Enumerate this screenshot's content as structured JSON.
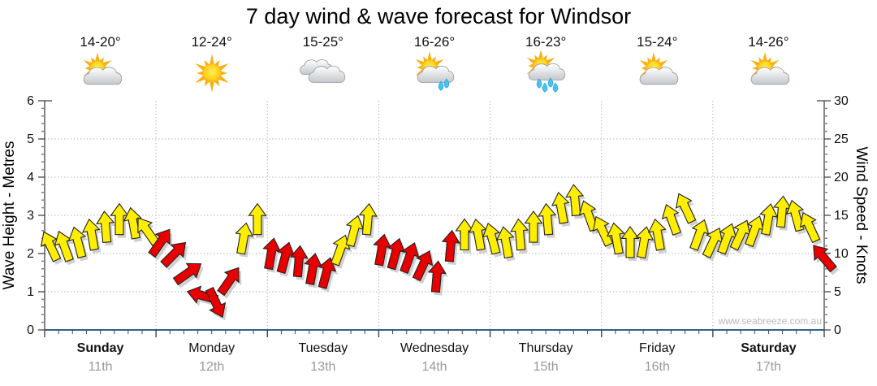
{
  "title": "7 day wind & wave forecast for Windsor",
  "watermark": "www.seabreeze.com.au",
  "left_axis_label": "Wave Height - Metres",
  "right_axis_label": "Wind Speed - Knots",
  "days": [
    {
      "name": "Sunday",
      "date": "11th",
      "temp": "14-20°",
      "icon": "sun-cloud",
      "bold": true
    },
    {
      "name": "Monday",
      "date": "12th",
      "temp": "12-24°",
      "icon": "sun",
      "bold": false
    },
    {
      "name": "Tuesday",
      "date": "13th",
      "temp": "15-25°",
      "icon": "clouds",
      "bold": false
    },
    {
      "name": "Wednesday",
      "date": "14th",
      "temp": "16-26°",
      "icon": "sun-cloud-drizzle",
      "bold": false
    },
    {
      "name": "Thursday",
      "date": "15th",
      "temp": "16-23°",
      "icon": "sun-cloud-rain",
      "bold": false
    },
    {
      "name": "Friday",
      "date": "16th",
      "temp": "15-24°",
      "icon": "sun-cloud",
      "bold": false
    },
    {
      "name": "Saturday",
      "date": "17th",
      "temp": "14-26°",
      "icon": "sun-cloud",
      "bold": true
    }
  ],
  "colors": {
    "yellow": "#ffee00",
    "red": "#e80000",
    "arrow_outline": "#222222",
    "arrow_shadow": "#8a8a8a",
    "grid": "#b6b6b6",
    "axis": "#444444",
    "baseline": "#31618f",
    "tick_text": "#111111",
    "date_text": "#999999",
    "watermark_text": "#b9b9b9"
  },
  "chart_data": {
    "type": "wind-arrow-series",
    "title": "7 day wind & wave forecast for Windsor",
    "left_axis": {
      "label": "Wave Height - Metres",
      "min": 0,
      "max": 6,
      "major_tick": 1,
      "minor_tick": 0.2
    },
    "right_axis": {
      "label": "Wind Speed - Knots",
      "min": 0,
      "max": 30,
      "major_tick": 5,
      "minor_tick": 1
    },
    "x_axis": {
      "days": [
        "Sunday",
        "Monday",
        "Tuesday",
        "Wednesday",
        "Thursday",
        "Friday",
        "Saturday"
      ],
      "dates": [
        "11th",
        "12th",
        "13th",
        "14th",
        "15th",
        "16th",
        "17th"
      ],
      "samples_per_day": 8
    },
    "grid": {
      "horizontal_at_metres": [
        1,
        2,
        3,
        4,
        5
      ],
      "vertical_at_day_boundaries": true,
      "style": "dotted"
    },
    "arrow_colors_present": [
      "yellow",
      "red"
    ],
    "arrows": [
      {
        "t": 0,
        "knots": 11,
        "dir": -25,
        "color": "yellow"
      },
      {
        "t": 1,
        "knots": 11,
        "dir": -20,
        "color": "yellow"
      },
      {
        "t": 2,
        "knots": 11.5,
        "dir": -15,
        "color": "yellow"
      },
      {
        "t": 3,
        "knots": 12.5,
        "dir": -10,
        "color": "yellow"
      },
      {
        "t": 4,
        "knots": 13.5,
        "dir": -5,
        "color": "yellow"
      },
      {
        "t": 5,
        "knots": 14.5,
        "dir": 0,
        "color": "yellow"
      },
      {
        "t": 6,
        "knots": 14,
        "dir": -10,
        "color": "yellow"
      },
      {
        "t": 7,
        "knots": 13,
        "dir": -35,
        "color": "yellow"
      },
      {
        "t": 8,
        "knots": 11.5,
        "dir": 35,
        "color": "red"
      },
      {
        "t": 9,
        "knots": 10,
        "dir": 45,
        "color": "red"
      },
      {
        "t": 10,
        "knots": 7.5,
        "dir": 55,
        "color": "red"
      },
      {
        "t": 11,
        "knots": 4.5,
        "dir": -75,
        "color": "red"
      },
      {
        "t": 12,
        "knots": 3.5,
        "dir": 155,
        "color": "red"
      },
      {
        "t": 13,
        "knots": 6.5,
        "dir": 35,
        "color": "red"
      },
      {
        "t": 14,
        "knots": 12,
        "dir": 10,
        "color": "yellow"
      },
      {
        "t": 15,
        "knots": 14.5,
        "dir": 0,
        "color": "yellow"
      },
      {
        "t": 16,
        "knots": 10,
        "dir": 10,
        "color": "red"
      },
      {
        "t": 17,
        "knots": 9.5,
        "dir": 15,
        "color": "red"
      },
      {
        "t": 18,
        "knots": 9,
        "dir": 5,
        "color": "red"
      },
      {
        "t": 19,
        "knots": 8,
        "dir": 10,
        "color": "red"
      },
      {
        "t": 20,
        "knots": 7.5,
        "dir": 15,
        "color": "red"
      },
      {
        "t": 21,
        "knots": 10.5,
        "dir": 20,
        "color": "yellow"
      },
      {
        "t": 22,
        "knots": 13,
        "dir": 15,
        "color": "yellow"
      },
      {
        "t": 23,
        "knots": 14.5,
        "dir": 5,
        "color": "yellow"
      },
      {
        "t": 24,
        "knots": 10.5,
        "dir": 10,
        "color": "red"
      },
      {
        "t": 25,
        "knots": 10,
        "dir": 15,
        "color": "red"
      },
      {
        "t": 26,
        "knots": 9.5,
        "dir": 20,
        "color": "red"
      },
      {
        "t": 27,
        "knots": 8.5,
        "dir": 25,
        "color": "red"
      },
      {
        "t": 28,
        "knots": 7,
        "dir": 5,
        "color": "red"
      },
      {
        "t": 29,
        "knots": 11,
        "dir": 5,
        "color": "red"
      },
      {
        "t": 30,
        "knots": 12.5,
        "dir": 0,
        "color": "yellow"
      },
      {
        "t": 31,
        "knots": 12.5,
        "dir": -10,
        "color": "yellow"
      },
      {
        "t": 32,
        "knots": 12,
        "dir": -15,
        "color": "yellow"
      },
      {
        "t": 33,
        "knots": 11.5,
        "dir": -10,
        "color": "yellow"
      },
      {
        "t": 34,
        "knots": 12.5,
        "dir": -5,
        "color": "yellow"
      },
      {
        "t": 35,
        "knots": 13.5,
        "dir": 0,
        "color": "yellow"
      },
      {
        "t": 36,
        "knots": 14.5,
        "dir": -5,
        "color": "yellow"
      },
      {
        "t": 37,
        "knots": 16,
        "dir": -10,
        "color": "yellow"
      },
      {
        "t": 38,
        "knots": 17,
        "dir": -5,
        "color": "yellow"
      },
      {
        "t": 39,
        "knots": 15,
        "dir": -20,
        "color": "yellow"
      },
      {
        "t": 40,
        "knots": 13,
        "dir": -25,
        "color": "yellow"
      },
      {
        "t": 41,
        "knots": 12,
        "dir": -10,
        "color": "yellow"
      },
      {
        "t": 42,
        "knots": 11.5,
        "dir": 0,
        "color": "yellow"
      },
      {
        "t": 43,
        "knots": 11.5,
        "dir": 10,
        "color": "yellow"
      },
      {
        "t": 44,
        "knots": 12.5,
        "dir": -10,
        "color": "yellow"
      },
      {
        "t": 45,
        "knots": 14.5,
        "dir": -20,
        "color": "yellow"
      },
      {
        "t": 46,
        "knots": 16,
        "dir": -25,
        "color": "yellow"
      },
      {
        "t": 47,
        "knots": 12.5,
        "dir": 20,
        "color": "yellow"
      },
      {
        "t": 48,
        "knots": 11.5,
        "dir": 25,
        "color": "yellow"
      },
      {
        "t": 49,
        "knots": 12,
        "dir": 20,
        "color": "yellow"
      },
      {
        "t": 50,
        "knots": 12.5,
        "dir": 25,
        "color": "yellow"
      },
      {
        "t": 51,
        "knots": 13,
        "dir": 20,
        "color": "yellow"
      },
      {
        "t": 52,
        "knots": 14.5,
        "dir": 10,
        "color": "yellow"
      },
      {
        "t": 53,
        "knots": 15.5,
        "dir": 5,
        "color": "yellow"
      },
      {
        "t": 54,
        "knots": 15,
        "dir": -15,
        "color": "yellow"
      },
      {
        "t": 55,
        "knots": 13.5,
        "dir": -25,
        "color": "yellow"
      },
      {
        "t": 56,
        "knots": 9.5,
        "dir": -40,
        "color": "red"
      }
    ]
  }
}
